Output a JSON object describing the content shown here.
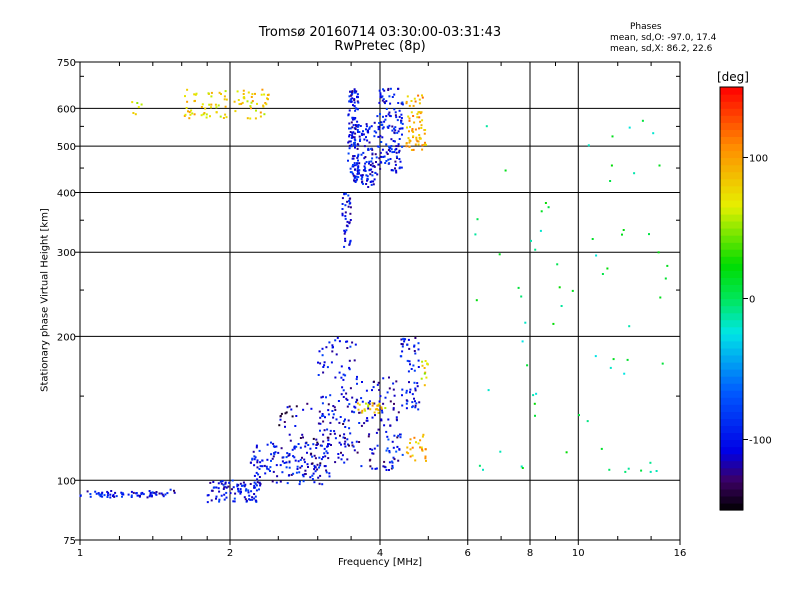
{
  "header": {
    "title_line1": "Tromsø 20160714 03:30:00-03:31:43",
    "title_line2": "RwPretec (8p)",
    "phases_heading": "Phases",
    "phases_o": "mean, sd,O: -97.0, 17.4",
    "phases_x": "mean, sd,X:  86.2, 22.6"
  },
  "chart_data": {
    "type": "scatter",
    "title": "Tromsø 20160714 03:30:00-03:31:43",
    "subtitle": "RwPretec (8p)",
    "xlabel": "Frequency [MHz]",
    "ylabel": "Stationary phase Virtual Height [km]",
    "x_scale": "log",
    "y_scale": "log",
    "xlim": [
      1,
      16
    ],
    "ylim": [
      75,
      750
    ],
    "x_ticks": [
      1,
      2,
      4,
      6,
      8,
      10,
      16
    ],
    "y_ticks": [
      75,
      100,
      200,
      300,
      400,
      500,
      600,
      750
    ],
    "grid": true,
    "colorbar": {
      "label": "[deg]",
      "range": [
        -150,
        150
      ],
      "ticks": [
        100,
        0,
        -100
      ]
    },
    "clusters": [
      {
        "x": [
          1.0,
          1.5
        ],
        "y": [
          92,
          95
        ],
        "phase": -100,
        "n": 70
      },
      {
        "x": [
          1.5,
          1.55
        ],
        "y": [
          94,
          98
        ],
        "phase": -110,
        "n": 3
      },
      {
        "x": [
          1.25,
          1.33
        ],
        "y": [
          580,
          620
        ],
        "phase": 60,
        "n": 6
      },
      {
        "x": [
          1.62,
          2.4
        ],
        "y": [
          570,
          660
        ],
        "phase": 80,
        "n": 90
      },
      {
        "x": [
          1.8,
          2.3
        ],
        "y": [
          90,
          100
        ],
        "phase": -100,
        "n": 90
      },
      {
        "x": [
          2.2,
          3.2
        ],
        "y": [
          98,
          120
        ],
        "phase": -100,
        "n": 150
      },
      {
        "x": [
          2.5,
          3.3
        ],
        "y": [
          108,
          145
        ],
        "phase": -120,
        "n": 60
      },
      {
        "x": [
          3.0,
          3.6
        ],
        "y": [
          118,
          200
        ],
        "phase": -100,
        "n": 90
      },
      {
        "x": [
          3.3,
          4.4
        ],
        "y": [
          105,
          165
        ],
        "phase": -110,
        "n": 120
      },
      {
        "x": [
          3.6,
          4.1
        ],
        "y": [
          138,
          145
        ],
        "phase": 80,
        "n": 25
      },
      {
        "x": [
          4.1,
          4.5
        ],
        "y": [
          105,
          125
        ],
        "phase": -90,
        "n": 20
      },
      {
        "x": [
          4.4,
          4.8
        ],
        "y": [
          140,
          200
        ],
        "phase": -100,
        "n": 60
      },
      {
        "x": [
          4.5,
          4.95
        ],
        "y": [
          108,
          125
        ],
        "phase": 90,
        "n": 25
      },
      {
        "x": [
          4.8,
          5.0
        ],
        "y": [
          158,
          178
        ],
        "phase": 70,
        "n": 12
      },
      {
        "x": [
          3.35,
          3.5
        ],
        "y": [
          300,
          400
        ],
        "phase": -100,
        "n": 40
      },
      {
        "x": [
          3.45,
          3.62
        ],
        "y": [
          420,
          660
        ],
        "phase": -100,
        "n": 110
      },
      {
        "x": [
          3.55,
          3.95
        ],
        "y": [
          410,
          560
        ],
        "phase": -100,
        "n": 120
      },
      {
        "x": [
          3.95,
          4.45
        ],
        "y": [
          440,
          660
        ],
        "phase": -100,
        "n": 140
      },
      {
        "x": [
          4.5,
          4.95
        ],
        "y": [
          490,
          640
        ],
        "phase": 95,
        "n": 70
      },
      {
        "x": [
          6.2,
          15.2
        ],
        "y": [
          100,
          620
        ],
        "phase": 0,
        "n": 70
      }
    ]
  }
}
